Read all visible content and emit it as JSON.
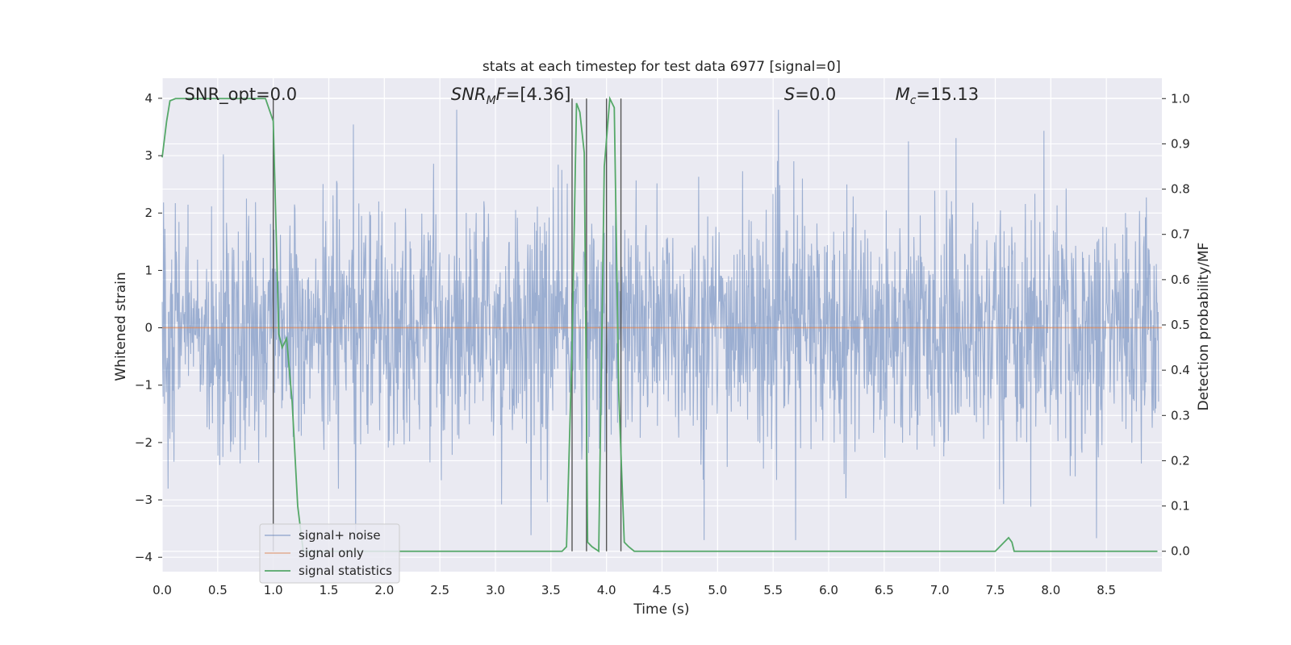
{
  "chart_data": {
    "type": "line",
    "title": "stats at each timestep for test data 6977 [signal=0]",
    "xlabel": "Time (s)",
    "ylabel": "Whitened strain",
    "ylabel_right": "Detection probability/MF",
    "xlim": [
      0.0,
      9.0
    ],
    "ylim": [
      -4.25,
      4.35
    ],
    "ylim_right": [
      -0.045,
      1.045
    ],
    "x_ticks": [
      "0.0",
      "0.5",
      "1.0",
      "1.5",
      "2.0",
      "2.5",
      "3.0",
      "3.5",
      "4.0",
      "4.5",
      "5.0",
      "5.5",
      "6.0",
      "6.5",
      "7.0",
      "7.5",
      "8.0",
      "8.5"
    ],
    "x_tick_values": [
      0.0,
      0.5,
      1.0,
      1.5,
      2.0,
      2.5,
      3.0,
      3.5,
      4.0,
      4.5,
      5.0,
      5.5,
      6.0,
      6.5,
      7.0,
      7.5,
      8.0,
      8.5
    ],
    "y_ticks": [
      "4",
      "3",
      "2",
      "1",
      "0",
      "−1",
      "−2",
      "−3",
      "−4"
    ],
    "y_tick_values": [
      4,
      3,
      2,
      1,
      0,
      -1,
      -2,
      -3,
      -4
    ],
    "y_right_ticks": [
      "1.0",
      "0.9",
      "0.8",
      "0.7",
      "0.6",
      "0.5",
      "0.4",
      "0.3",
      "0.2",
      "0.1",
      "0.0"
    ],
    "y_right_tick_values": [
      1.0,
      0.9,
      0.8,
      0.7,
      0.6,
      0.5,
      0.4,
      0.3,
      0.2,
      0.1,
      0.0
    ],
    "grid": true,
    "legend_position": "lower-left",
    "annotations": [
      {
        "parts": [
          {
            "text": "SNR_opt=0.0",
            "style": "normal"
          }
        ],
        "x": 0.2
      },
      {
        "parts": [
          {
            "text": "SNR",
            "style": "italic"
          },
          {
            "text": "M",
            "style": "italic-sub"
          },
          {
            "text": "F",
            "style": "italic"
          },
          {
            "text": "=[4.36]",
            "style": "normal"
          }
        ],
        "x": 2.6
      },
      {
        "parts": [
          {
            "text": "S",
            "style": "italic"
          },
          {
            "text": "=0.0",
            "style": "normal"
          }
        ],
        "x": 5.6
      },
      {
        "parts": [
          {
            "text": "M",
            "style": "italic"
          },
          {
            "text": "c",
            "style": "italic-sub"
          },
          {
            "text": "=15.13",
            "style": "normal"
          }
        ],
        "x": 6.6
      }
    ],
    "vertical_lines": [
      1.0,
      3.69,
      3.82,
      4.0,
      4.13
    ],
    "series": [
      {
        "name": "signal+ noise",
        "axis": "left",
        "color": "#4c72b0",
        "kind": "noise",
        "envelope": {
          "typical_abs": 1.0,
          "common_range": [
            -2.0,
            2.5
          ],
          "peak_range": [
            -3.7,
            3.8
          ]
        }
      },
      {
        "name": "signal only",
        "axis": "left",
        "color": "#dd8452",
        "x": [
          0.0,
          9.0
        ],
        "y": [
          0.0,
          0.0
        ]
      },
      {
        "name": "signal statistics",
        "axis": "right",
        "color": "#55a868",
        "x": [
          0.0,
          0.04,
          0.07,
          0.12,
          0.5,
          0.93,
          1.0,
          1.05,
          1.08,
          1.12,
          1.17,
          1.22,
          1.27,
          1.3,
          3.6,
          3.64,
          3.69,
          3.73,
          3.76,
          3.8,
          3.83,
          3.87,
          3.93,
          3.98,
          4.03,
          4.07,
          4.11,
          4.16,
          4.2,
          4.25,
          7.5,
          7.62,
          7.65,
          7.67,
          8.96
        ],
        "y": [
          0.87,
          0.95,
          0.995,
          1.0,
          1.0,
          1.0,
          0.95,
          0.48,
          0.45,
          0.47,
          0.33,
          0.1,
          0.0,
          0.0,
          0.0,
          0.01,
          0.45,
          0.99,
          0.97,
          0.88,
          0.02,
          0.01,
          0.0,
          0.85,
          1.0,
          0.98,
          0.35,
          0.02,
          0.01,
          0.0,
          0.0,
          0.03,
          0.02,
          0.0,
          0.0
        ]
      }
    ]
  }
}
